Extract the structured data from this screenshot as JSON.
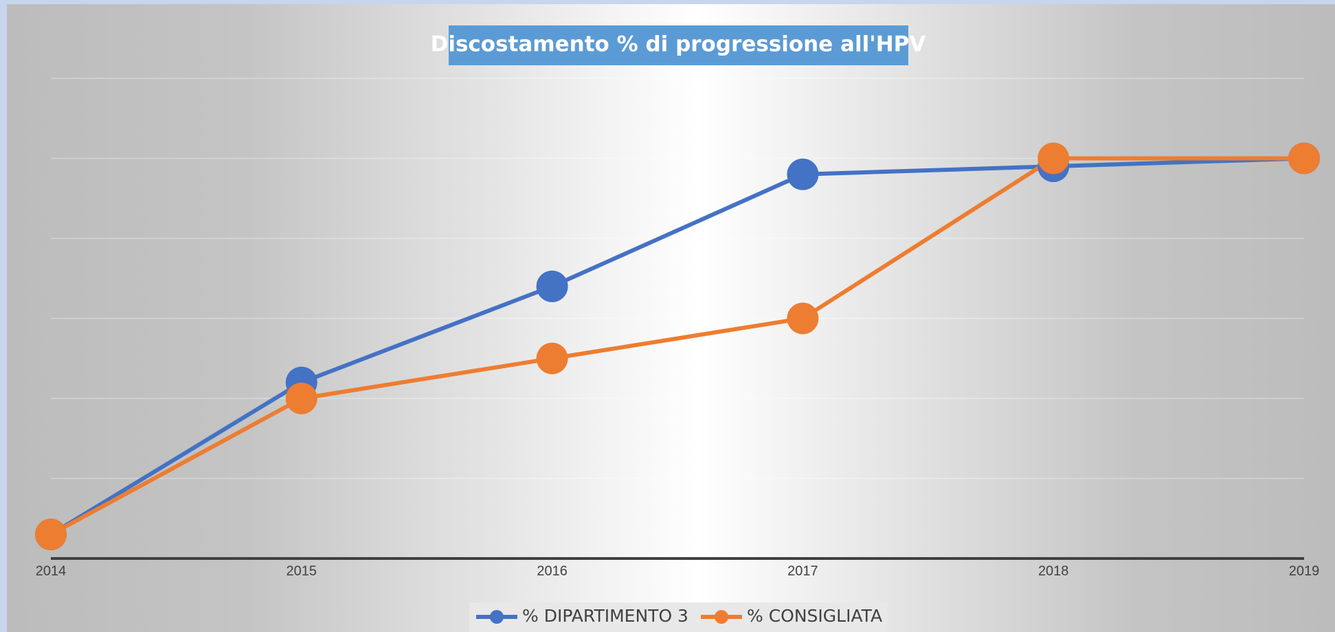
{
  "chart_data": {
    "type": "line",
    "title": "Discostamento % di progressione all'HPV",
    "categories": [
      "2014",
      "2015",
      "2016",
      "2017",
      "2018",
      "2019"
    ],
    "series": [
      {
        "name": "% DIPARTIMENTO 3",
        "color": "#4472c4",
        "values": [
          0.3,
          2.2,
          3.4,
          4.8,
          4.9,
          5.0
        ]
      },
      {
        "name": "% CONSIGLIATA",
        "color": "#ed7d31",
        "values": [
          0.3,
          2.0,
          2.5,
          3.0,
          5.0,
          5.0
        ]
      }
    ],
    "ylim": [
      0,
      7
    ],
    "yticks": [
      0,
      1,
      2,
      3,
      4,
      5,
      6
    ],
    "grid": true,
    "legend": "bottom"
  }
}
